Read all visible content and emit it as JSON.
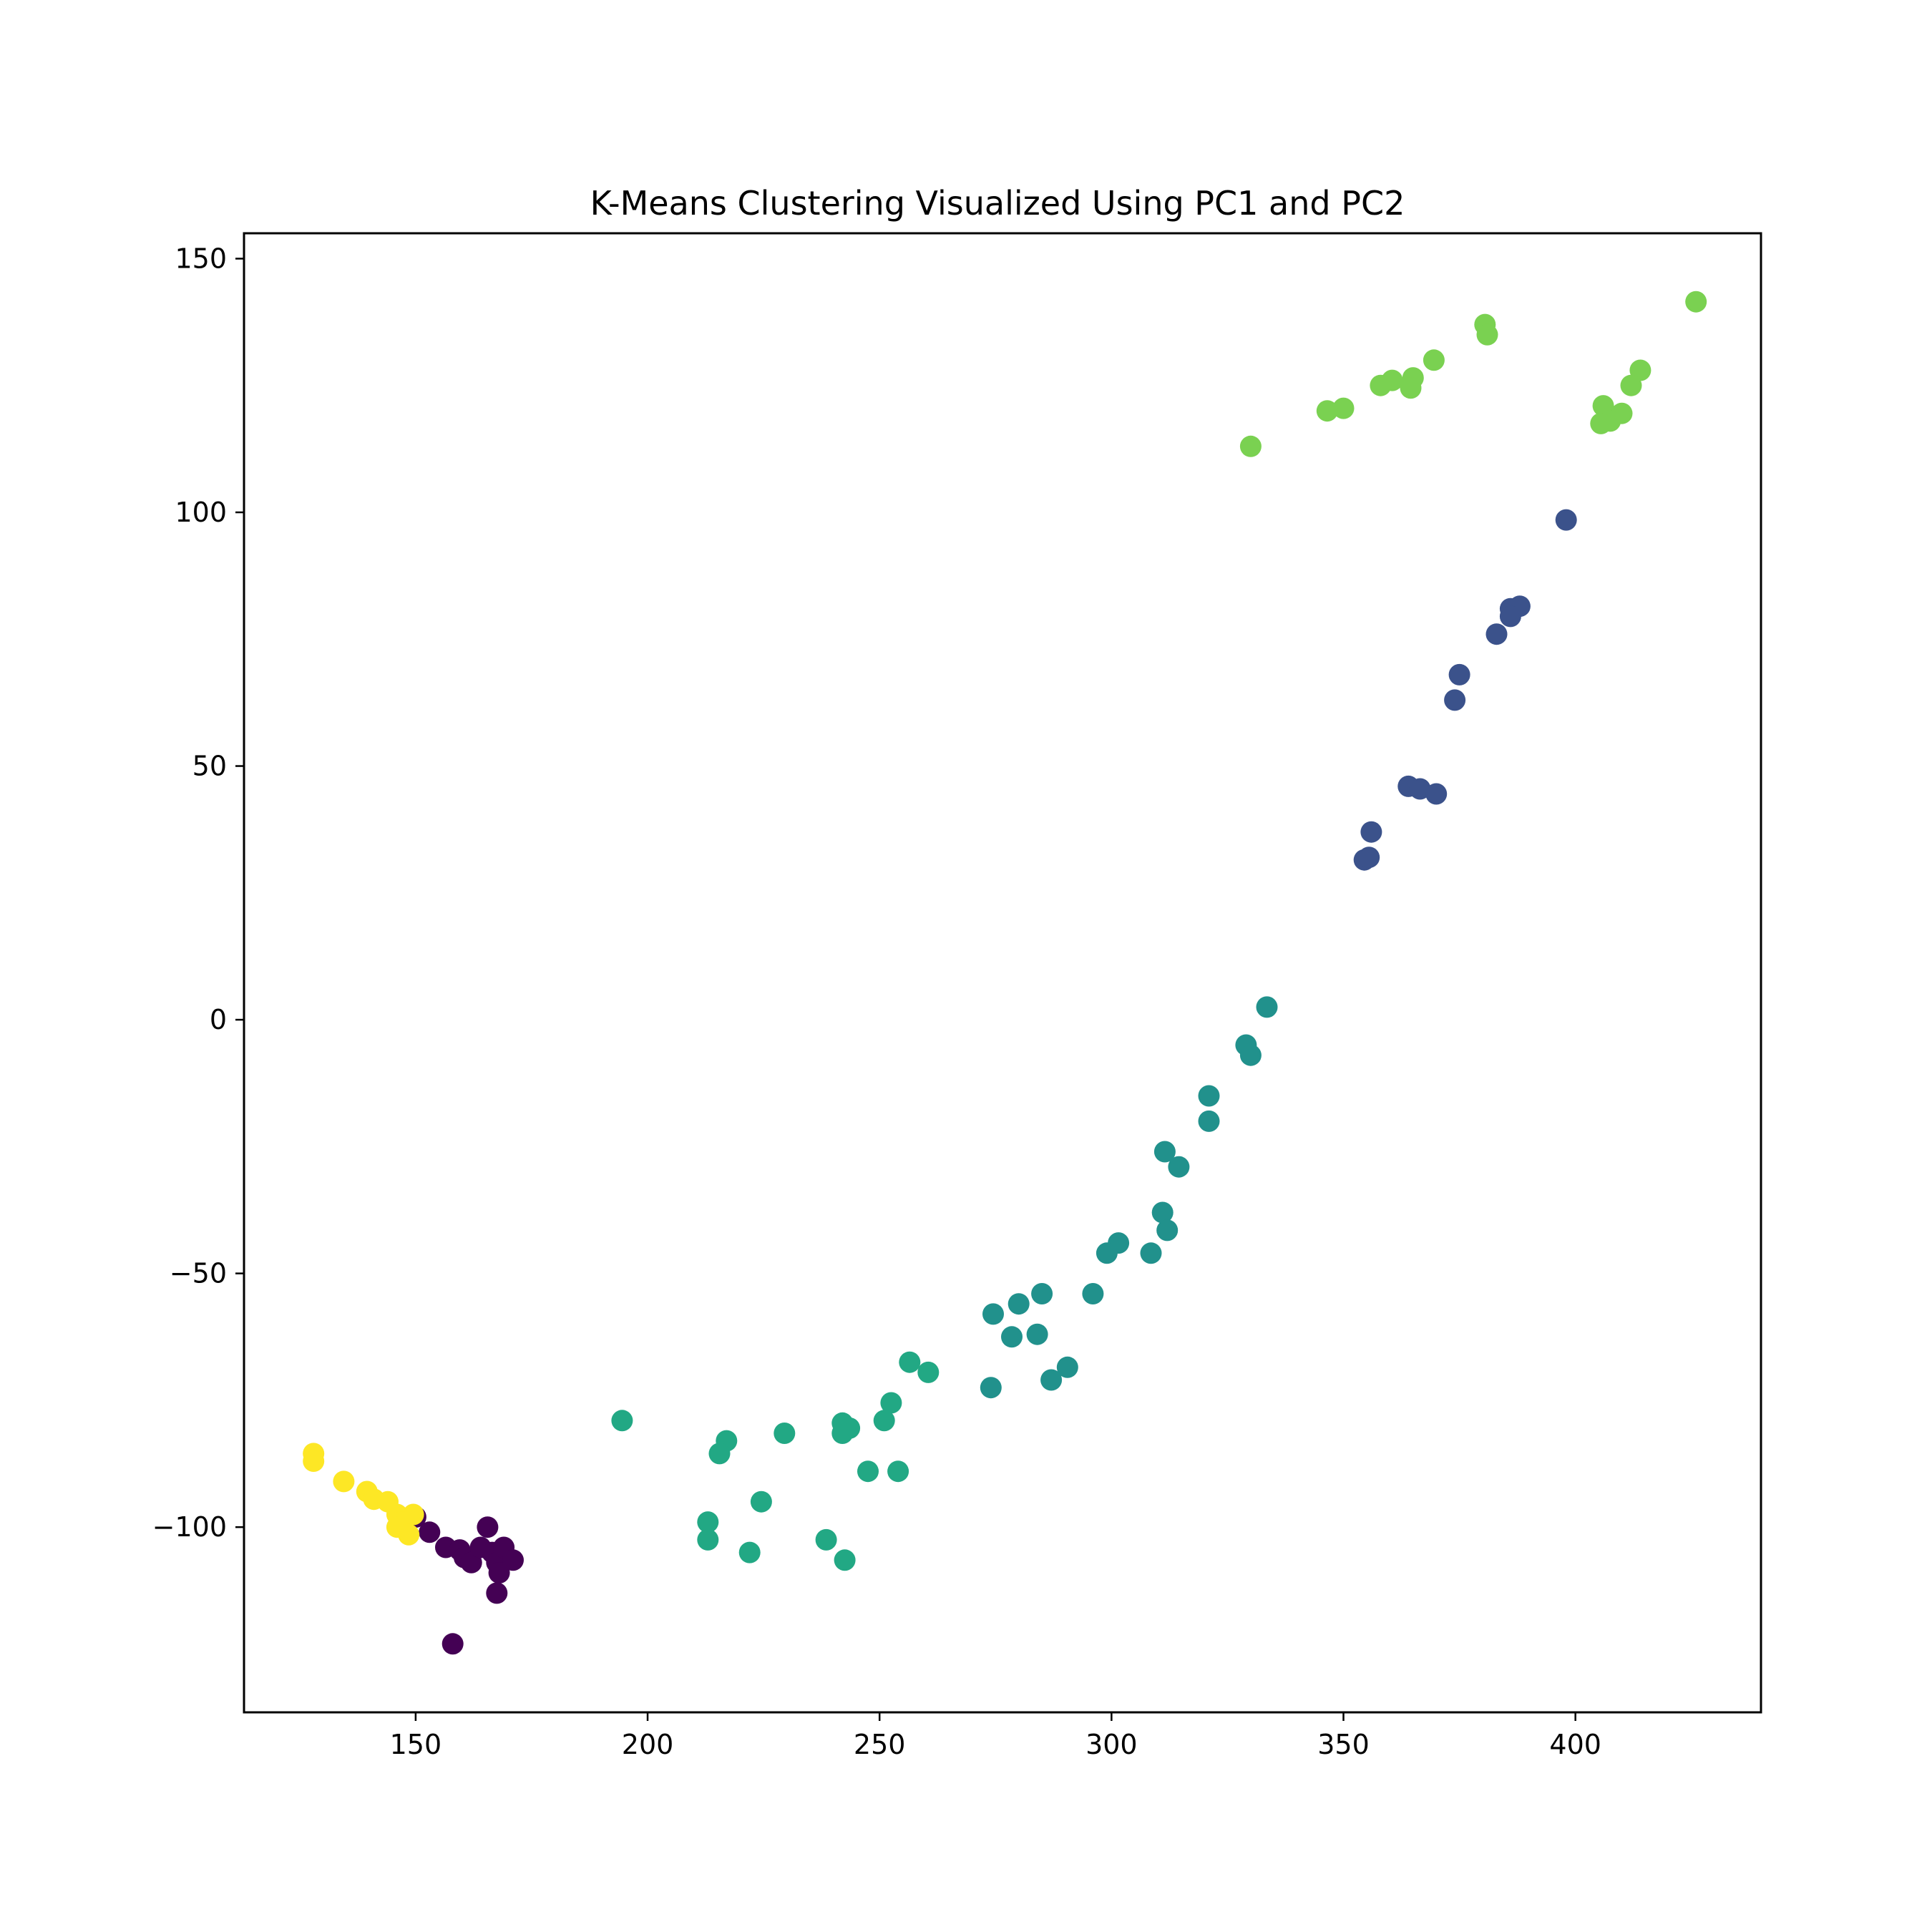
{
  "chart_data": {
    "type": "scatter",
    "title": "K-Means Clustering Visualized Using PC1 and PC2",
    "xlabel": "",
    "ylabel": "",
    "xlim": [
      113,
      440
    ],
    "ylim": [
      -136.5,
      155
    ],
    "x_ticks": [
      150,
      200,
      250,
      300,
      350,
      400
    ],
    "x_tick_labels": [
      "150",
      "200",
      "250",
      "300",
      "350",
      "400"
    ],
    "y_ticks": [
      150,
      100,
      50,
      0,
      -50,
      -100
    ],
    "y_tick_labels": [
      "150",
      "100",
      "50",
      "0",
      "−50",
      "−100"
    ],
    "grid": false,
    "legend": "none",
    "series": [
      {
        "color": "#440154",
        "points": [
          [
            150,
            -98
          ],
          [
            153,
            -101
          ],
          [
            156.5,
            -104
          ],
          [
            159.5,
            -104.5
          ],
          [
            160.5,
            -106
          ],
          [
            162,
            -107
          ],
          [
            164,
            -104
          ],
          [
            165.5,
            -100
          ],
          [
            166.5,
            -105
          ],
          [
            167.5,
            -107
          ],
          [
            168,
            -109
          ],
          [
            169,
            -104
          ],
          [
            171,
            -106.5
          ],
          [
            167.5,
            -113
          ],
          [
            158,
            -123
          ]
        ]
      },
      {
        "color": "#3b528b",
        "points": [
          [
            398,
            98.5
          ],
          [
            388,
            81.5
          ],
          [
            386,
            81
          ],
          [
            386,
            79.5
          ],
          [
            383,
            76
          ],
          [
            375,
            68
          ],
          [
            374,
            63
          ],
          [
            364,
            46
          ],
          [
            366.5,
            45.5
          ],
          [
            370,
            44.5
          ],
          [
            356,
            37
          ],
          [
            354.5,
            31.5
          ],
          [
            355.5,
            32
          ]
        ]
      },
      {
        "color": "#21918c",
        "points": [
          [
            333.5,
            2.5
          ],
          [
            329,
            -5
          ],
          [
            330,
            -7
          ],
          [
            321,
            -15
          ],
          [
            321,
            -20
          ],
          [
            311.5,
            -26
          ],
          [
            314.5,
            -29
          ],
          [
            311,
            -38
          ],
          [
            312,
            -41.5
          ],
          [
            301.5,
            -44
          ],
          [
            299,
            -46
          ],
          [
            308.5,
            -46
          ],
          [
            296,
            -54
          ],
          [
            285,
            -54
          ],
          [
            280,
            -56
          ],
          [
            274.5,
            -58
          ],
          [
            278.5,
            -62.5
          ],
          [
            284,
            -62
          ],
          [
            290.5,
            -68.5
          ],
          [
            287,
            -71
          ],
          [
            274,
            -72.5
          ]
        ]
      },
      {
        "color": "#22a884",
        "points": [
          [
            194.5,
            -79
          ],
          [
            217,
            -83
          ],
          [
            215.5,
            -85.5
          ],
          [
            229.5,
            -81.5
          ],
          [
            242,
            -79.5
          ],
          [
            243.5,
            -80.5
          ],
          [
            242,
            -81.5
          ],
          [
            251,
            -79
          ],
          [
            252.5,
            -75.5
          ],
          [
            256.5,
            -67.5
          ],
          [
            260.5,
            -69.5
          ],
          [
            247.5,
            -89
          ],
          [
            254,
            -89
          ],
          [
            224.5,
            -95
          ],
          [
            213,
            -99
          ],
          [
            213,
            -102.5
          ],
          [
            222,
            -105
          ],
          [
            238.5,
            -102.5
          ],
          [
            242.5,
            -106.5
          ]
        ]
      },
      {
        "color": "#7ad151",
        "points": [
          [
            426,
            141.5
          ],
          [
            380.5,
            137
          ],
          [
            381,
            135
          ],
          [
            369.5,
            130
          ],
          [
            365,
            126.5
          ],
          [
            364.5,
            124.5
          ],
          [
            360.5,
            126
          ],
          [
            358,
            125
          ],
          [
            350,
            120.5
          ],
          [
            346.5,
            120
          ],
          [
            330,
            113
          ],
          [
            414,
            128
          ],
          [
            412,
            125
          ],
          [
            406,
            121
          ],
          [
            410,
            119.5
          ],
          [
            407.5,
            118
          ],
          [
            405.5,
            117.5
          ]
        ]
      },
      {
        "color": "#fde725",
        "points": [
          [
            128,
            -85.5
          ],
          [
            128,
            -87
          ],
          [
            134.5,
            -91
          ],
          [
            139.5,
            -93
          ],
          [
            141,
            -94.5
          ],
          [
            144,
            -95
          ],
          [
            146,
            -97.5
          ],
          [
            149.5,
            -97.5
          ],
          [
            147,
            -99
          ],
          [
            146,
            -100
          ],
          [
            148.5,
            -101.5
          ]
        ]
      }
    ]
  }
}
